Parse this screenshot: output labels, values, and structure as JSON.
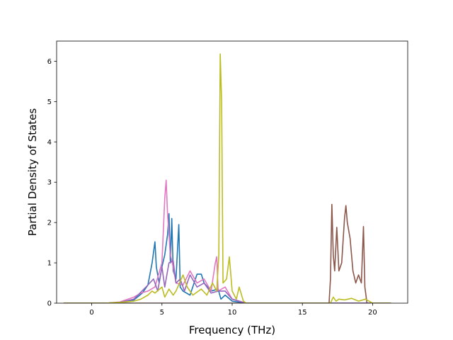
{
  "chart_data": {
    "type": "line",
    "title": "",
    "xlabel": "Frequency (THz)",
    "ylabel": "Partial Density of States",
    "xlim": [
      -2.5,
      22.5
    ],
    "ylim": [
      0,
      6.5
    ],
    "xticks": [
      0,
      5,
      10,
      15,
      20
    ],
    "yticks": [
      0,
      1,
      2,
      3,
      4,
      5,
      6
    ],
    "grid": false,
    "legend": "none",
    "series": [
      {
        "color": "#1f77b4",
        "points": [
          [
            -2,
            0
          ],
          [
            1,
            0
          ],
          [
            2,
            0.02
          ],
          [
            3,
            0.08
          ],
          [
            3.6,
            0.25
          ],
          [
            4,
            0.45
          ],
          [
            4.3,
            1.0
          ],
          [
            4.5,
            1.52
          ],
          [
            4.6,
            0.9
          ],
          [
            4.8,
            0.5
          ],
          [
            5.0,
            0.9
          ],
          [
            5.2,
            1.2
          ],
          [
            5.4,
            1.7
          ],
          [
            5.5,
            2.22
          ],
          [
            5.6,
            1.0
          ],
          [
            5.7,
            2.1
          ],
          [
            5.8,
            0.8
          ],
          [
            6.0,
            0.6
          ],
          [
            6.2,
            1.95
          ],
          [
            6.3,
            0.4
          ],
          [
            6.5,
            0.3
          ],
          [
            7.0,
            0.2
          ],
          [
            7.5,
            0.72
          ],
          [
            7.8,
            0.72
          ],
          [
            8.0,
            0.5
          ],
          [
            8.5,
            0.3
          ],
          [
            9.0,
            0.35
          ],
          [
            9.2,
            0.1
          ],
          [
            9.5,
            0.2
          ],
          [
            10,
            0.05
          ],
          [
            11,
            0
          ],
          [
            21.3,
            0
          ]
        ]
      },
      {
        "color": "#e377c2",
        "points": [
          [
            -2,
            0
          ],
          [
            1,
            0
          ],
          [
            2,
            0.03
          ],
          [
            3,
            0.15
          ],
          [
            3.5,
            0.25
          ],
          [
            4,
            0.3
          ],
          [
            4.5,
            0.4
          ],
          [
            5.0,
            1.0
          ],
          [
            5.2,
            2.6
          ],
          [
            5.3,
            3.05
          ],
          [
            5.4,
            2.2
          ],
          [
            5.6,
            1.2
          ],
          [
            5.8,
            0.9
          ],
          [
            6.0,
            0.5
          ],
          [
            6.5,
            0.45
          ],
          [
            7.0,
            0.8
          ],
          [
            7.5,
            0.5
          ],
          [
            8.0,
            0.6
          ],
          [
            8.5,
            0.3
          ],
          [
            8.8,
            1.0
          ],
          [
            8.9,
            1.15
          ],
          [
            9.0,
            0.3
          ],
          [
            9.5,
            0.4
          ],
          [
            10,
            0.1
          ],
          [
            11,
            0
          ],
          [
            21.3,
            0
          ]
        ]
      },
      {
        "color": "#8c564b",
        "points": [
          [
            -2,
            0
          ],
          [
            16.9,
            0
          ],
          [
            17.0,
            0.6
          ],
          [
            17.1,
            2.45
          ],
          [
            17.2,
            1.2
          ],
          [
            17.3,
            0.8
          ],
          [
            17.45,
            1.88
          ],
          [
            17.6,
            0.8
          ],
          [
            17.8,
            1.0
          ],
          [
            18.0,
            2.1
          ],
          [
            18.1,
            2.42
          ],
          [
            18.2,
            2.0
          ],
          [
            18.4,
            1.6
          ],
          [
            18.6,
            0.8
          ],
          [
            18.8,
            0.5
          ],
          [
            19.0,
            0.7
          ],
          [
            19.2,
            0.5
          ],
          [
            19.35,
            1.9
          ],
          [
            19.45,
            0.4
          ],
          [
            19.6,
            0
          ],
          [
            21.3,
            0
          ]
        ]
      },
      {
        "color": "#9467bd",
        "points": [
          [
            -2,
            0
          ],
          [
            1,
            0
          ],
          [
            2,
            0.02
          ],
          [
            3,
            0.1
          ],
          [
            4,
            0.45
          ],
          [
            4.4,
            0.6
          ],
          [
            4.7,
            0.3
          ],
          [
            5.0,
            0.9
          ],
          [
            5.2,
            0.4
          ],
          [
            5.5,
            1.0
          ],
          [
            5.8,
            1.05
          ],
          [
            6.0,
            0.5
          ],
          [
            6.3,
            0.6
          ],
          [
            6.6,
            0.3
          ],
          [
            7.0,
            0.7
          ],
          [
            7.5,
            0.4
          ],
          [
            8.0,
            0.5
          ],
          [
            8.5,
            0.25
          ],
          [
            9.0,
            0.3
          ],
          [
            9.5,
            0.3
          ],
          [
            10,
            0.1
          ],
          [
            11,
            0
          ],
          [
            21.3,
            0
          ]
        ]
      },
      {
        "color": "#bcbd22",
        "points": [
          [
            -2,
            0
          ],
          [
            1,
            0
          ],
          [
            2,
            0.02
          ],
          [
            3,
            0.05
          ],
          [
            3.5,
            0.1
          ],
          [
            4,
            0.2
          ],
          [
            4.3,
            0.3
          ],
          [
            4.5,
            0.25
          ],
          [
            5.0,
            0.4
          ],
          [
            5.2,
            0.15
          ],
          [
            5.5,
            0.35
          ],
          [
            5.8,
            0.2
          ],
          [
            6.0,
            0.3
          ],
          [
            6.5,
            0.7
          ],
          [
            6.8,
            0.4
          ],
          [
            7.2,
            0.2
          ],
          [
            7.8,
            0.35
          ],
          [
            8.2,
            0.2
          ],
          [
            8.6,
            0.5
          ],
          [
            8.9,
            0.3
          ],
          [
            9.05,
            1.2
          ],
          [
            9.15,
            6.18
          ],
          [
            9.25,
            5.0
          ],
          [
            9.35,
            0.5
          ],
          [
            9.6,
            0.6
          ],
          [
            9.8,
            1.15
          ],
          [
            10.0,
            0.3
          ],
          [
            10.3,
            0.1
          ],
          [
            10.5,
            0.4
          ],
          [
            10.8,
            0.05
          ],
          [
            11,
            0
          ],
          [
            17.0,
            0
          ],
          [
            17.2,
            0.15
          ],
          [
            17.4,
            0.05
          ],
          [
            17.6,
            0.1
          ],
          [
            18.0,
            0.08
          ],
          [
            18.5,
            0.12
          ],
          [
            19.0,
            0.05
          ],
          [
            19.5,
            0.1
          ],
          [
            20,
            0
          ],
          [
            21.3,
            0
          ]
        ]
      }
    ]
  }
}
